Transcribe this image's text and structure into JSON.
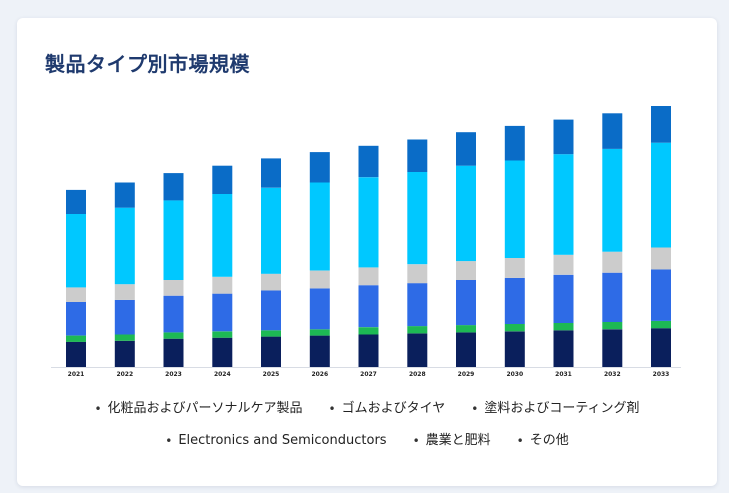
{
  "page": {
    "title": "製品タイプ別市場規模"
  },
  "chart_data": {
    "type": "bar",
    "stacked": true,
    "title": "製品タイプ別市場規模",
    "xlabel": "",
    "ylabel": "",
    "grid": false,
    "legend_position": "bottom",
    "categories": [
      "2021",
      "2022",
      "2023",
      "2024",
      "2025",
      "2026",
      "2027",
      "2028",
      "2029",
      "2030",
      "2031",
      "2032",
      "2033"
    ],
    "series": [
      {
        "name": "その他",
        "color": "#0a1f5c",
        "values": [
          24,
          25,
          27,
          28,
          29,
          30,
          31,
          32,
          33,
          34,
          35,
          36,
          37
        ]
      },
      {
        "name": "農業と肥料",
        "color": "#1db954",
        "values": [
          6,
          6,
          6,
          6,
          6,
          6,
          7,
          7,
          7,
          7,
          7,
          7,
          7
        ]
      },
      {
        "name": "Electronics and Semiconductors",
        "color": "#2e6be6",
        "values": [
          32,
          33,
          35,
          36,
          38,
          39,
          40,
          41,
          43,
          44,
          46,
          47,
          49
        ]
      },
      {
        "name": "塗料およびコーティング剤",
        "color": "#cccccc",
        "values": [
          14,
          15,
          15,
          16,
          16,
          17,
          17,
          18,
          18,
          19,
          19,
          20,
          21
        ]
      },
      {
        "name": "ゴムおよびタイヤ",
        "color": "#00c8ff",
        "values": [
          70,
          73,
          76,
          79,
          82,
          84,
          86,
          88,
          91,
          93,
          96,
          98,
          100
        ]
      },
      {
        "name": "化粧品およびパーソナルケア製品",
        "color": "#0a6cc7",
        "values": [
          23,
          24,
          26,
          27,
          28,
          29,
          30,
          31,
          32,
          33,
          33,
          34,
          35
        ]
      }
    ]
  },
  "legend": [
    {
      "label": "化粧品およびパーソナルケア製品"
    },
    {
      "label": "ゴムおよびタイヤ"
    },
    {
      "label": "塗料およびコーティング剤"
    },
    {
      "label": "Electronics and Semiconductors"
    },
    {
      "label": "農業と肥料"
    },
    {
      "label": "その他"
    }
  ],
  "legend_bullet": "•"
}
